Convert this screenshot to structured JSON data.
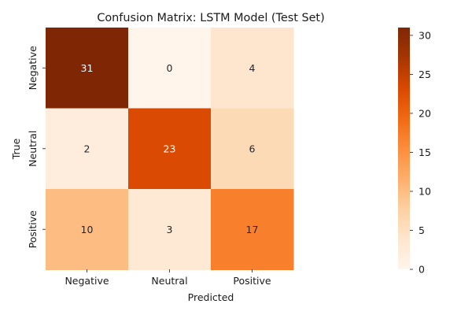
{
  "chart_data": {
    "type": "heatmap",
    "title": "Confusion Matrix: LSTM Model (Test Set)",
    "xlabel": "Predicted",
    "ylabel": "True",
    "x_categories": [
      "Negative",
      "Neutral",
      "Positive"
    ],
    "y_categories": [
      "Negative",
      "Neutral",
      "Positive"
    ],
    "values": [
      [
        31,
        0,
        4
      ],
      [
        2,
        23,
        6
      ],
      [
        10,
        3,
        17
      ]
    ],
    "colormap": "Oranges",
    "colorbar": {
      "min": 0,
      "max": 31,
      "ticks": [
        0,
        5,
        10,
        15,
        20,
        25,
        30
      ]
    },
    "annotated": true
  }
}
